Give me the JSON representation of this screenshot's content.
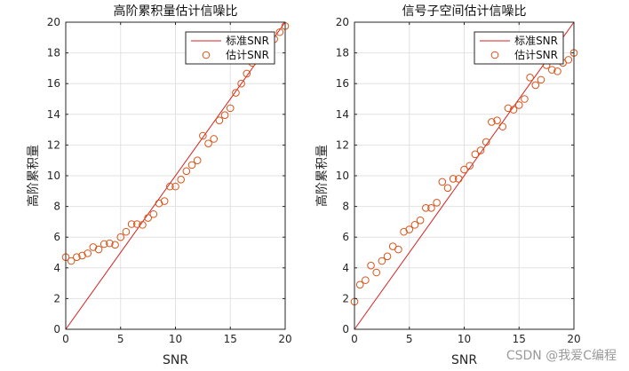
{
  "watermark": "CSDN @我爱C编程",
  "chart_data": [
    {
      "type": "scatter",
      "title": "高阶累积量估计信噪比",
      "xlabel": "SNR",
      "ylabel": "高阶累积量",
      "xlim": [
        0,
        20
      ],
      "ylim": [
        0,
        20
      ],
      "xticks": [
        "0",
        "5",
        "10",
        "15",
        "20"
      ],
      "yticks": [
        "0",
        "2",
        "4",
        "6",
        "8",
        "10",
        "12",
        "14",
        "16",
        "18",
        "20"
      ],
      "grid": true,
      "legend_position": "top-right",
      "series": [
        {
          "name": "标准SNR",
          "kind": "line",
          "color": "#d62020",
          "x": [
            0,
            20
          ],
          "y": [
            0,
            20
          ]
        },
        {
          "name": "估计SNR",
          "kind": "marker",
          "color": "#d95319",
          "x": [
            0,
            0.5,
            1,
            1.5,
            2,
            2.5,
            3,
            3.5,
            4,
            4.5,
            5,
            5.5,
            6,
            6.5,
            7,
            7.5,
            8,
            8.5,
            9,
            9.5,
            10,
            10.5,
            11,
            11.5,
            12,
            12.5,
            13,
            13.5,
            14,
            14.5,
            15,
            15.5,
            16,
            16.5,
            17,
            17.5,
            18,
            18.5,
            19,
            19.5,
            20
          ],
          "y": [
            4.7,
            4.45,
            4.7,
            4.8,
            4.95,
            5.35,
            5.2,
            5.55,
            5.6,
            5.5,
            6.0,
            6.35,
            6.85,
            6.85,
            6.8,
            7.25,
            7.5,
            8.2,
            8.35,
            9.3,
            9.3,
            9.75,
            10.3,
            10.7,
            11.0,
            12.6,
            12.1,
            12.4,
            13.6,
            13.95,
            14.4,
            15.4,
            16.0,
            16.65,
            17.35,
            17.9,
            18.3,
            18.3,
            18.9,
            19.35,
            19.75
          ]
        }
      ]
    },
    {
      "type": "scatter",
      "title": "信号子空间估计信噪比",
      "xlabel": "SNR",
      "ylabel": "高阶累积量",
      "xlim": [
        0,
        20
      ],
      "ylim": [
        0,
        20
      ],
      "xticks": [
        "0",
        "5",
        "10",
        "15",
        "20"
      ],
      "yticks": [
        "0",
        "2",
        "4",
        "6",
        "8",
        "10",
        "12",
        "14",
        "16",
        "18",
        "20"
      ],
      "grid": true,
      "legend_position": "top-right",
      "series": [
        {
          "name": "标准SNR",
          "kind": "line",
          "color": "#d62020",
          "x": [
            0,
            20
          ],
          "y": [
            0,
            20
          ]
        },
        {
          "name": "估计SNR",
          "kind": "marker",
          "color": "#d95319",
          "x": [
            0,
            0.5,
            1,
            1.5,
            2,
            2.5,
            3,
            3.5,
            4,
            4.5,
            5,
            5.5,
            6,
            6.5,
            7,
            7.5,
            8,
            8.5,
            9,
            9.5,
            10,
            10.5,
            11,
            11.5,
            12,
            12.5,
            13,
            13.5,
            14,
            14.5,
            15,
            15.5,
            16,
            16.5,
            17,
            17.5,
            18,
            18.5,
            19,
            19.5,
            20
          ],
          "y": [
            1.8,
            2.9,
            3.2,
            4.15,
            3.7,
            4.45,
            4.75,
            5.4,
            5.2,
            6.35,
            6.5,
            6.8,
            7.1,
            7.9,
            7.9,
            8.25,
            9.6,
            9.2,
            9.8,
            9.8,
            10.4,
            10.65,
            11.4,
            11.65,
            12.2,
            13.5,
            13.6,
            13.2,
            14.4,
            14.3,
            14.6,
            15.0,
            16.4,
            15.9,
            16.25,
            17.2,
            16.9,
            16.8,
            17.35,
            17.55,
            18.0
          ]
        }
      ]
    }
  ]
}
